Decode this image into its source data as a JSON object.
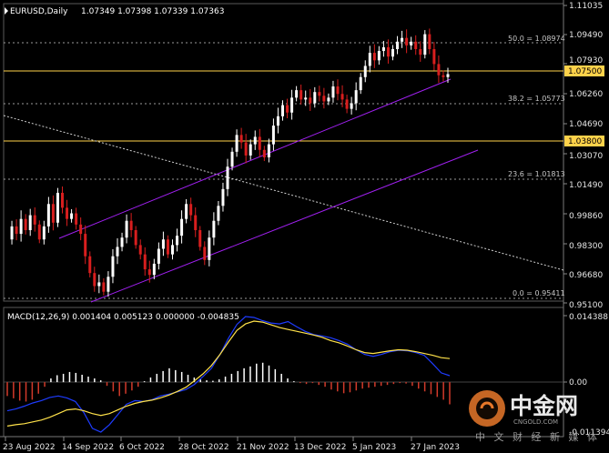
{
  "header": {
    "symbol": "EURUSD,Daily",
    "ohlc": "1.07349 1.07398 1.07339 1.07363"
  },
  "price_axis": {
    "ticks": [
      "1.11035",
      "1.09490",
      "1.07930",
      "1.06260",
      "1.04690",
      "1.03070",
      "1.01490",
      "0.99860",
      "0.98300",
      "0.96680",
      "0.95100"
    ],
    "badges": [
      {
        "text": "1.07500",
        "color": "#ffd24a"
      },
      {
        "text": "1.03800",
        "color": "#ffd24a"
      }
    ]
  },
  "fibonacci": [
    {
      "label": "50.0 = 1.08974"
    },
    {
      "label": "38.2 = 1.05773"
    },
    {
      "label": "23.6 = 1.01813"
    },
    {
      "label": "0.0 = 0.95411"
    }
  ],
  "macd": {
    "label": "MACD(12,26,9) 0.001404 0.005123 0.000000 -0.004835",
    "ticks": [
      "0.014388",
      "0.00",
      "-0.011394"
    ],
    "hist_positive_color": "#ffffff",
    "hist_negative_color": "#d23a2a",
    "main_line_color": "#1e3cff",
    "signal_line_color": "#ffe24a"
  },
  "time_axis": {
    "labels": [
      "23 Aug 2022",
      "14 Sep 2022",
      "6 Oct 2022",
      "28 Oct 2022",
      "21 Nov 2022",
      "13 Dec 2022",
      "5 Jan 2023",
      "27 Jan 2023"
    ]
  },
  "watermark": {
    "brand": "中金网",
    "site": "CNGOLD.COM",
    "caption": "中 文 财 经 新 媒 体"
  },
  "colors": {
    "background": "#000000",
    "bull": "#ffffff",
    "bear": "#d81e1e",
    "channel": "#a020f0",
    "horizontal_level": "#ffd24a",
    "dotted": "#bdbdbd"
  },
  "chart_data": {
    "type": "candlestick",
    "timeframe": "Daily",
    "ylim": [
      0.951,
      1.1104
    ],
    "candles_path": [
      0.985,
      0.992,
      0.988,
      0.996,
      0.99,
      0.998,
      0.993,
      0.985,
      0.992,
      1.004,
      0.994,
      1.01,
      1.002,
      0.996,
      0.999,
      0.993,
      0.988,
      0.976,
      0.967,
      0.96,
      0.962,
      0.957,
      0.965,
      0.976,
      0.981,
      0.986,
      0.995,
      0.99,
      0.982,
      0.977,
      0.969,
      0.966,
      0.972,
      0.98,
      0.985,
      0.977,
      0.982,
      0.987,
      0.996,
      1.004,
      0.998,
      0.99,
      0.981,
      0.974,
      0.986,
      0.995,
      1.003,
      1.012,
      1.024,
      1.032,
      1.041,
      1.037,
      1.03,
      1.036,
      1.04,
      1.033,
      1.029,
      1.036,
      1.046,
      1.051,
      1.057,
      1.053,
      1.061,
      1.065,
      1.06,
      1.061,
      1.058,
      1.064,
      1.062,
      1.059,
      1.061,
      1.067,
      1.063,
      1.06,
      1.055,
      1.058,
      1.065,
      1.072,
      1.078,
      1.085,
      1.081,
      1.086,
      1.088,
      1.083,
      1.087,
      1.091,
      1.093,
      1.089,
      1.091,
      1.087,
      1.084,
      1.095,
      1.087,
      1.079,
      1.073,
      1.072,
      1.0736
    ],
    "levels": [
      1.075,
      1.038
    ],
    "fib_levels": [
      1.08974,
      1.05773,
      1.01813,
      0.95411
    ],
    "macd": {
      "ylim": [
        -0.011394,
        0.014388
      ],
      "main": [
        -0.0062,
        -0.0058,
        -0.0052,
        -0.0045,
        -0.004,
        -0.0033,
        -0.003,
        -0.0034,
        -0.0042,
        -0.0066,
        -0.01,
        -0.0108,
        -0.0092,
        -0.007,
        -0.0048,
        -0.004,
        -0.0042,
        -0.0038,
        -0.003,
        -0.0026,
        -0.0021,
        -0.0016,
        -0.0005,
        0.0012,
        0.003,
        0.006,
        0.0095,
        0.0125,
        0.0142,
        0.014,
        0.0133,
        0.0128,
        0.0126,
        0.0131,
        0.012,
        0.011,
        0.0103,
        0.01,
        0.0096,
        0.009,
        0.0082,
        0.007,
        0.006,
        0.0056,
        0.006,
        0.0066,
        0.0069,
        0.0068,
        0.0064,
        0.0058,
        0.004,
        0.002,
        0.0014
      ],
      "signal": [
        -0.0095,
        -0.0092,
        -0.009,
        -0.0086,
        -0.0082,
        -0.0076,
        -0.0068,
        -0.006,
        -0.0058,
        -0.0062,
        -0.0068,
        -0.0072,
        -0.0068,
        -0.006,
        -0.0052,
        -0.0046,
        -0.0042,
        -0.0039,
        -0.0034,
        -0.0028,
        -0.002,
        -0.0011,
        0.0003,
        0.0018,
        0.0036,
        0.006,
        0.0087,
        0.0112,
        0.0126,
        0.0132,
        0.013,
        0.0124,
        0.0118,
        0.0114,
        0.011,
        0.0106,
        0.0102,
        0.0097,
        0.009,
        0.0085,
        0.0078,
        0.007,
        0.0064,
        0.0062,
        0.0065,
        0.0068,
        0.007,
        0.0069,
        0.0066,
        0.0062,
        0.0058,
        0.0053,
        0.0051
      ],
      "histogram": [
        -0.003,
        -0.0035,
        -0.004,
        -0.0042,
        -0.0038,
        -0.0025,
        -0.001,
        0.0008,
        0.0015,
        0.0018,
        0.0022,
        0.002,
        0.0016,
        0.0012,
        0.0008,
        0.0004,
        -0.0008,
        -0.002,
        -0.003,
        -0.0025,
        -0.0018,
        -0.001,
        0.0002,
        0.001,
        0.0018,
        0.0024,
        0.003,
        0.0026,
        0.0022,
        0.0016,
        0.001,
        0.0006,
        0.0004,
        0.0003,
        0.0006,
        0.0012,
        0.0018,
        0.0024,
        0.003,
        0.0034,
        0.004,
        0.0042,
        0.0036,
        0.0028,
        0.0018,
        0.0008,
        0.0002,
        -0.0002,
        -0.0004,
        -0.0002,
        -0.0006,
        -0.001,
        -0.0016,
        -0.002,
        -0.0024,
        -0.0022,
        -0.0018,
        -0.0014,
        -0.0012,
        -0.001,
        -0.0008,
        -0.0006,
        -0.0004,
        -0.0002,
        -0.0003,
        -0.0008,
        -0.0014,
        -0.002,
        -0.0026,
        -0.0032,
        -0.0038,
        -0.0048
      ]
    }
  }
}
